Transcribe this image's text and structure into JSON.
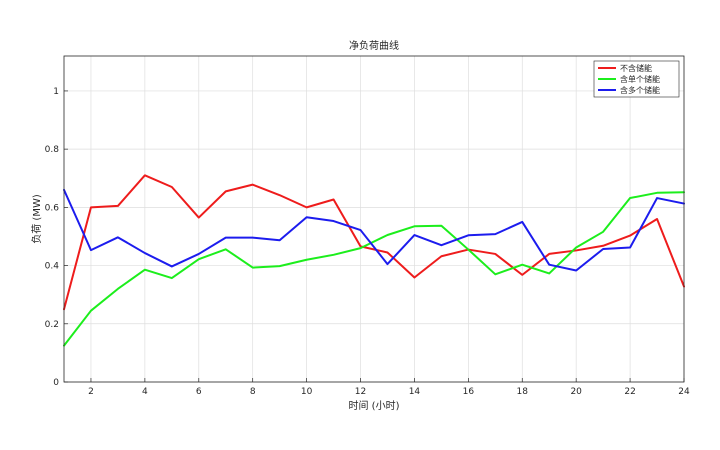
{
  "chart_data": {
    "type": "line",
    "title": "净负荷曲线",
    "xlabel": "时间 (小时)",
    "ylabel": "负荷 (MW)",
    "xlim": [
      1,
      24
    ],
    "ylim": [
      0,
      1.12
    ],
    "xticks": [
      2,
      4,
      6,
      8,
      10,
      12,
      14,
      16,
      18,
      20,
      22,
      24
    ],
    "yticks": [
      0,
      0.2,
      0.4,
      0.6,
      0.8,
      1
    ],
    "grid": true,
    "legend_position": "top-right",
    "x": [
      1,
      2,
      3,
      4,
      5,
      6,
      7,
      8,
      9,
      10,
      11,
      12,
      13,
      14,
      15,
      16,
      17,
      18,
      19,
      20,
      21,
      22,
      23,
      24
    ],
    "series": [
      {
        "name": "不含储能",
        "color": "#ee1c1c",
        "values": [
          0.25,
          0.6,
          0.605,
          0.71,
          0.67,
          0.565,
          0.655,
          0.678,
          0.642,
          0.6,
          0.627,
          0.466,
          0.445,
          0.359,
          0.432,
          0.455,
          0.44,
          0.368,
          0.44,
          0.452,
          0.468,
          0.503,
          0.56,
          0.328
        ]
      },
      {
        "name": "含单个储能",
        "color": "#1cee1c",
        "values": [
          0.125,
          0.245,
          0.32,
          0.386,
          0.357,
          0.422,
          0.456,
          0.393,
          0.398,
          0.42,
          0.437,
          0.46,
          0.505,
          0.535,
          0.537,
          0.455,
          0.37,
          0.403,
          0.373,
          0.462,
          0.516,
          0.632,
          0.65,
          0.652
        ]
      },
      {
        "name": "含多个储能",
        "color": "#1c1cee",
        "values": [
          0.66,
          0.453,
          0.497,
          0.443,
          0.397,
          0.44,
          0.496,
          0.496,
          0.487,
          0.566,
          0.553,
          0.522,
          0.405,
          0.505,
          0.47,
          0.504,
          0.508,
          0.55,
          0.403,
          0.383,
          0.457,
          0.462,
          0.632,
          0.613
        ]
      }
    ]
  }
}
